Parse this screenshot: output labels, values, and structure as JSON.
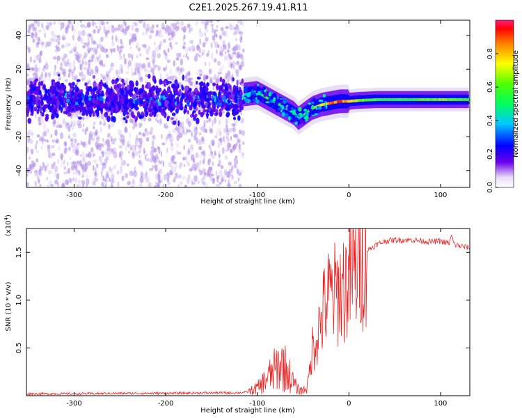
{
  "title": "C2E1.2025.267.19.41.R11",
  "colors": {
    "spectrum_ridge": "#ff1010",
    "snr_line": "#ee2222",
    "scatter": "#b38fe8",
    "core": "#6a00e8",
    "axis": "#000000"
  },
  "chart_data": [
    {
      "type": "heatmap",
      "name": "spectrogram",
      "xlabel": "Height of straight line (km)",
      "ylabel": "Frequency (Hz)",
      "xlim": [
        -352,
        132
      ],
      "ylim": [
        -50,
        49
      ],
      "xticks": [
        -300,
        -200,
        -100,
        0,
        100
      ],
      "xtick_labels": [
        "-300",
        "-200",
        "-100",
        "0",
        "100"
      ],
      "yticks": [
        -40,
        -20,
        0,
        20,
        40
      ],
      "ytick_labels": [
        "-40",
        "-20",
        "0",
        "20",
        "40"
      ],
      "colorbar": {
        "label": "Normalized spectral amplitude",
        "range": [
          0,
          1
        ],
        "ticks": [
          0.0,
          0.2,
          0.4,
          0.6,
          0.8
        ],
        "tick_labels": [
          "0.0",
          "0.2",
          "0.4",
          "0.6",
          "0.8"
        ]
      },
      "noise_region_x": [
        -352,
        -115
      ],
      "ridge": {
        "x": [
          -115,
          -100,
          -90,
          -80,
          -70,
          -60,
          -55,
          -50,
          -45,
          -40,
          -30,
          -20,
          -10,
          0,
          10,
          30,
          60,
          100,
          132
        ],
        "freq": [
          5,
          6,
          3,
          0,
          -3,
          -6,
          -9,
          -7,
          -5,
          -3,
          -1,
          0,
          1,
          1,
          1.5,
          2,
          2,
          2,
          2
        ],
        "amplitude": [
          0.45,
          0.5,
          0.55,
          0.55,
          0.5,
          0.5,
          0.45,
          0.5,
          0.6,
          0.7,
          0.8,
          0.9,
          0.95,
          0.9,
          0.7,
          0.6,
          0.6,
          0.7,
          0.6
        ]
      }
    },
    {
      "type": "line",
      "name": "snr",
      "xlabel": "Height of straight line (km)",
      "ylabel": "SNR (10 * v/v)",
      "y_multiplier_label": "(x10",
      "y_multiplier_exp": "4",
      "y_multiplier_close": ")",
      "xlim": [
        -352,
        132
      ],
      "ylim": [
        0,
        1.75
      ],
      "xticks": [
        -300,
        -200,
        -100,
        0,
        100
      ],
      "xtick_labels": [
        "-300",
        "-200",
        "-100",
        "0",
        "100"
      ],
      "yticks": [
        0.5,
        1.0,
        1.5
      ],
      "ytick_labels": [
        "0.5",
        "1.0",
        "1.5"
      ],
      "series": [
        {
          "name": "SNR",
          "x": [
            -352,
            -300,
            -250,
            -200,
            -150,
            -120,
            -110,
            -100,
            -95,
            -90,
            -85,
            -80,
            -75,
            -70,
            -65,
            -60,
            -55,
            -50,
            -45,
            -42,
            -40,
            -35,
            -30,
            -25,
            -20,
            -15,
            -10,
            -5,
            0,
            5,
            10,
            15,
            20,
            30,
            40,
            50,
            60,
            70,
            80,
            90,
            100,
            105,
            110,
            112,
            115,
            120,
            125,
            132
          ],
          "y": [
            0.02,
            0.02,
            0.025,
            0.025,
            0.03,
            0.03,
            0.04,
            0.08,
            0.12,
            0.18,
            0.22,
            0.28,
            0.33,
            0.3,
            0.22,
            0.12,
            0.06,
            0.05,
            0.12,
            0.3,
            0.5,
            0.62,
            0.8,
            0.98,
            1.05,
            1.05,
            1.1,
            1.15,
            1.2,
            1.28,
            1.38,
            1.45,
            1.52,
            1.58,
            1.62,
            1.63,
            1.63,
            1.63,
            1.62,
            1.61,
            1.62,
            1.6,
            1.6,
            1.68,
            1.58,
            1.57,
            1.56,
            1.55
          ]
        }
      ]
    }
  ]
}
